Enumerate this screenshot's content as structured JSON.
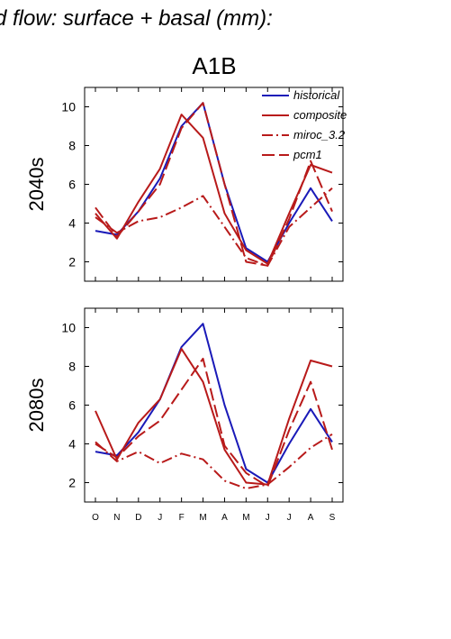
{
  "figure": {
    "heading": "d flow: surface + basal (mm):",
    "scenario": "A1B"
  },
  "colors": {
    "historical": "#1a1ab8",
    "model": "#b81a1a"
  },
  "chart_data": [
    {
      "type": "line",
      "panel_label": "2040s",
      "categories": [
        "O",
        "N",
        "D",
        "J",
        "F",
        "M",
        "A",
        "M",
        "J",
        "J",
        "A",
        "S"
      ],
      "ylim": [
        1,
        11
      ],
      "yticks": [
        2,
        4,
        6,
        8,
        10
      ],
      "legend": "top-right",
      "series": [
        {
          "name": "historical",
          "style": "solid",
          "color": "#1a1ab8",
          "values": [
            3.6,
            3.4,
            4.6,
            6.3,
            9.0,
            10.2,
            6.0,
            2.7,
            2.0,
            4.0,
            5.8,
            4.1
          ]
        },
        {
          "name": "composite",
          "style": "solid",
          "color": "#b81a1a",
          "values": [
            4.5,
            3.2,
            5.1,
            6.8,
            9.6,
            8.4,
            4.5,
            2.6,
            1.9,
            4.5,
            7.0,
            6.6
          ]
        },
        {
          "name": "miroc_3.2",
          "style": "dashdot",
          "color": "#b81a1a",
          "values": [
            4.3,
            3.5,
            4.1,
            4.3,
            4.8,
            5.4,
            3.8,
            2.2,
            1.8,
            3.8,
            4.8,
            5.8
          ]
        },
        {
          "name": "pcm1",
          "style": "dashed",
          "color": "#b81a1a",
          "values": [
            4.8,
            3.3,
            4.6,
            6.0,
            8.9,
            10.2,
            6.0,
            2.0,
            1.8,
            4.2,
            7.2,
            4.6
          ]
        }
      ]
    },
    {
      "type": "line",
      "panel_label": "2080s",
      "categories": [
        "O",
        "N",
        "D",
        "J",
        "F",
        "M",
        "A",
        "M",
        "J",
        "J",
        "A",
        "S"
      ],
      "ylim": [
        1,
        11
      ],
      "yticks": [
        2,
        4,
        6,
        8,
        10
      ],
      "series": [
        {
          "name": "historical",
          "style": "solid",
          "color": "#1a1ab8",
          "values": [
            3.6,
            3.4,
            4.6,
            6.3,
            9.0,
            10.2,
            6.0,
            2.7,
            2.0,
            4.0,
            5.8,
            4.1
          ]
        },
        {
          "name": "composite",
          "style": "solid",
          "color": "#b81a1a",
          "values": [
            5.7,
            3.2,
            5.1,
            6.3,
            8.9,
            7.2,
            3.7,
            2.0,
            1.9,
            5.3,
            8.3,
            8.0
          ]
        },
        {
          "name": "miroc_3.2",
          "style": "dashdot",
          "color": "#b81a1a",
          "values": [
            4.1,
            3.1,
            3.6,
            3.0,
            3.5,
            3.2,
            2.1,
            1.7,
            1.9,
            2.8,
            3.8,
            4.5
          ]
        },
        {
          "name": "pcm1",
          "style": "dashed",
          "color": "#b81a1a",
          "values": [
            4.0,
            3.3,
            4.4,
            5.2,
            6.8,
            8.4,
            3.9,
            2.5,
            1.8,
            4.7,
            7.2,
            3.7
          ]
        }
      ]
    }
  ]
}
